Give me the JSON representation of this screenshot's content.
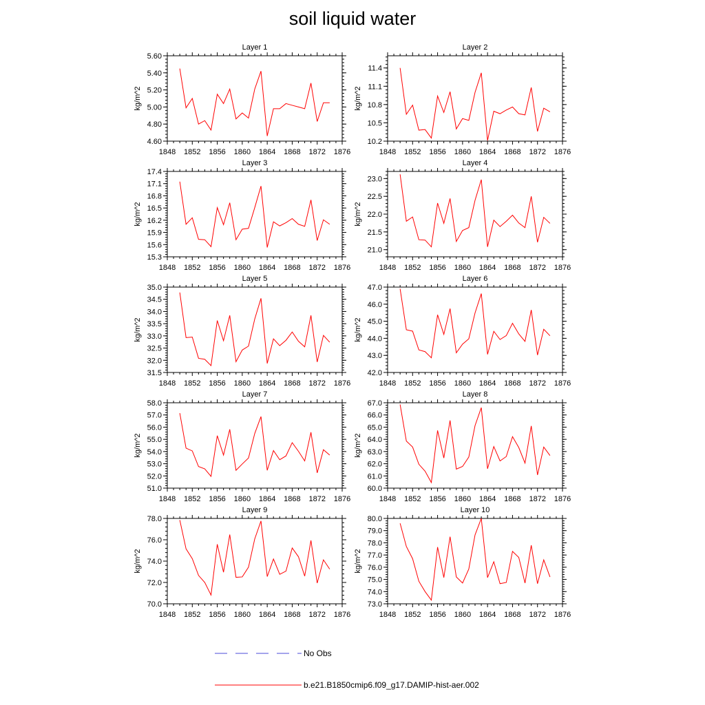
{
  "figure": {
    "title": "soil liquid water"
  },
  "legend": {
    "entries": [
      {
        "label": "No Obs",
        "color": "#4a4ad8",
        "style": "dashed"
      },
      {
        "label": "b.e21.B1850cmip6.f09_g17.DAMIP-hist-aer.002",
        "color": "#ff0000",
        "style": "solid"
      }
    ]
  },
  "chart_data": [
    {
      "type": "line",
      "title": "Layer 1",
      "ylabel": "kg/m^2",
      "xlim": [
        1848,
        1876
      ],
      "xticks": [
        1848,
        1852,
        1856,
        1860,
        1864,
        1868,
        1872,
        1876
      ],
      "ylim": [
        4.6,
        5.6
      ],
      "yticks": [
        "4.60",
        "4.80",
        "5.00",
        "5.20",
        "5.40",
        "5.60"
      ],
      "x": [
        1850,
        1851,
        1852,
        1853,
        1854,
        1855,
        1856,
        1857,
        1858,
        1859,
        1860,
        1861,
        1862,
        1863,
        1864,
        1865,
        1866,
        1867,
        1868,
        1869,
        1870,
        1871,
        1872,
        1873,
        1874
      ],
      "series": [
        {
          "name": "b.e21.B1850cmip6.f09_g17.DAMIP-hist-aer.002",
          "color": "#ff0000",
          "values": [
            5.45,
            4.99,
            5.1,
            4.8,
            4.84,
            4.73,
            5.15,
            5.04,
            5.21,
            4.86,
            4.93,
            4.87,
            5.21,
            5.42,
            4.66,
            4.98,
            4.98,
            5.04,
            5.02,
            5.0,
            4.98,
            5.28,
            4.83,
            5.05,
            5.05
          ]
        }
      ]
    },
    {
      "type": "line",
      "title": "Layer 2",
      "ylabel": "kg/m^2",
      "xlim": [
        1848,
        1876
      ],
      "xticks": [
        1848,
        1852,
        1856,
        1860,
        1864,
        1868,
        1872,
        1876
      ],
      "ylim": [
        10.2,
        11.6
      ],
      "yticks": [
        "10.2",
        "10.5",
        "10.8",
        "11.1",
        "11.4"
      ],
      "x": [
        1850,
        1851,
        1852,
        1853,
        1854,
        1855,
        1856,
        1857,
        1858,
        1859,
        1860,
        1861,
        1862,
        1863,
        1864,
        1865,
        1866,
        1867,
        1868,
        1869,
        1870,
        1871,
        1872,
        1873,
        1874
      ],
      "series": [
        {
          "name": "b.e21.B1850cmip6.f09_g17.DAMIP-hist-aer.002",
          "color": "#ff0000",
          "values": [
            11.4,
            10.64,
            10.79,
            10.38,
            10.39,
            10.25,
            10.94,
            10.67,
            11.01,
            10.4,
            10.57,
            10.54,
            11.0,
            11.32,
            10.21,
            10.69,
            10.65,
            10.71,
            10.76,
            10.65,
            10.63,
            11.08,
            10.36,
            10.74,
            10.68
          ]
        }
      ]
    },
    {
      "type": "line",
      "title": "Layer 3",
      "ylabel": "kg/m^2",
      "xlim": [
        1848,
        1876
      ],
      "xticks": [
        1848,
        1852,
        1856,
        1860,
        1864,
        1868,
        1872,
        1876
      ],
      "ylim": [
        15.3,
        17.4
      ],
      "yticks": [
        "15.3",
        "15.6",
        "15.9",
        "16.2",
        "16.5",
        "16.8",
        "17.1",
        "17.4"
      ],
      "x": [
        1850,
        1851,
        1852,
        1853,
        1854,
        1855,
        1856,
        1857,
        1858,
        1859,
        1860,
        1861,
        1862,
        1863,
        1864,
        1865,
        1866,
        1867,
        1868,
        1869,
        1870,
        1871,
        1872,
        1873,
        1874
      ],
      "series": [
        {
          "name": "b.e21.B1850cmip6.f09_g17.DAMIP-hist-aer.002",
          "color": "#ff0000",
          "values": [
            17.15,
            16.1,
            16.26,
            15.73,
            15.72,
            15.55,
            16.51,
            16.09,
            16.63,
            15.72,
            15.98,
            16.0,
            16.51,
            17.04,
            15.53,
            16.16,
            16.06,
            16.14,
            16.24,
            16.1,
            16.05,
            16.7,
            15.7,
            16.21,
            16.1
          ]
        }
      ]
    },
    {
      "type": "line",
      "title": "Layer 4",
      "ylabel": "kg/m^2",
      "xlim": [
        1848,
        1876
      ],
      "xticks": [
        1848,
        1852,
        1856,
        1860,
        1864,
        1868,
        1872,
        1876
      ],
      "ylim": [
        20.8,
        23.2
      ],
      "yticks": [
        "21.0",
        "21.5",
        "22.0",
        "22.5",
        "23.0"
      ],
      "x": [
        1850,
        1851,
        1852,
        1853,
        1854,
        1855,
        1856,
        1857,
        1858,
        1859,
        1860,
        1861,
        1862,
        1863,
        1864,
        1865,
        1866,
        1867,
        1868,
        1869,
        1870,
        1871,
        1872,
        1873,
        1874
      ],
      "series": [
        {
          "name": "b.e21.B1850cmip6.f09_g17.DAMIP-hist-aer.002",
          "color": "#ff0000",
          "values": [
            23.12,
            21.8,
            21.92,
            21.28,
            21.27,
            21.08,
            22.31,
            21.74,
            22.44,
            21.23,
            21.54,
            21.62,
            22.39,
            22.97,
            21.08,
            21.83,
            21.65,
            21.8,
            21.97,
            21.75,
            21.62,
            22.5,
            21.21,
            21.91,
            21.74
          ]
        }
      ]
    },
    {
      "type": "line",
      "title": "Layer 5",
      "ylabel": "kg/m^2",
      "xlim": [
        1848,
        1876
      ],
      "xticks": [
        1848,
        1852,
        1856,
        1860,
        1864,
        1868,
        1872,
        1876
      ],
      "ylim": [
        31.5,
        35.0
      ],
      "yticks": [
        "31.5",
        "32.0",
        "32.5",
        "33.0",
        "33.5",
        "34.0",
        "34.5",
        "35.0"
      ],
      "x": [
        1850,
        1851,
        1852,
        1853,
        1854,
        1855,
        1856,
        1857,
        1858,
        1859,
        1860,
        1861,
        1862,
        1863,
        1864,
        1865,
        1866,
        1867,
        1868,
        1869,
        1870,
        1871,
        1872,
        1873,
        1874
      ],
      "series": [
        {
          "name": "b.e21.B1850cmip6.f09_g17.DAMIP-hist-aer.002",
          "color": "#ff0000",
          "values": [
            34.78,
            32.93,
            32.95,
            32.08,
            32.04,
            31.78,
            33.63,
            32.8,
            33.84,
            31.94,
            32.42,
            32.58,
            33.69,
            34.54,
            31.87,
            32.88,
            32.6,
            32.82,
            33.16,
            32.78,
            32.55,
            33.84,
            31.93,
            33.02,
            32.74
          ]
        }
      ]
    },
    {
      "type": "line",
      "title": "Layer 6",
      "ylabel": "kg/m^2",
      "xlim": [
        1848,
        1876
      ],
      "xticks": [
        1848,
        1852,
        1856,
        1860,
        1864,
        1868,
        1872,
        1876
      ],
      "ylim": [
        42.0,
        47.0
      ],
      "yticks": [
        "42.0",
        "43.0",
        "44.0",
        "45.0",
        "46.0",
        "47.0"
      ],
      "x": [
        1850,
        1851,
        1852,
        1853,
        1854,
        1855,
        1856,
        1857,
        1858,
        1859,
        1860,
        1861,
        1862,
        1863,
        1864,
        1865,
        1866,
        1867,
        1868,
        1869,
        1870,
        1871,
        1872,
        1873,
        1874
      ],
      "series": [
        {
          "name": "b.e21.B1850cmip6.f09_g17.DAMIP-hist-aer.002",
          "color": "#ff0000",
          "values": [
            46.9,
            44.5,
            44.42,
            43.32,
            43.22,
            42.86,
            45.38,
            44.23,
            45.74,
            43.15,
            43.66,
            43.97,
            45.49,
            46.62,
            43.06,
            44.41,
            43.93,
            44.16,
            44.88,
            44.26,
            43.82,
            45.66,
            43.02,
            44.53,
            44.15
          ]
        }
      ]
    },
    {
      "type": "line",
      "title": "Layer 7",
      "ylabel": "kg/m^2",
      "xlim": [
        1848,
        1876
      ],
      "xticks": [
        1848,
        1852,
        1856,
        1860,
        1864,
        1868,
        1872,
        1876
      ],
      "ylim": [
        51.0,
        58.0
      ],
      "yticks": [
        "51.0",
        "52.0",
        "53.0",
        "54.0",
        "55.0",
        "56.0",
        "57.0",
        "58.0"
      ],
      "x": [
        1850,
        1851,
        1852,
        1853,
        1854,
        1855,
        1856,
        1857,
        1858,
        1859,
        1860,
        1861,
        1862,
        1863,
        1864,
        1865,
        1866,
        1867,
        1868,
        1869,
        1870,
        1871,
        1872,
        1873,
        1874
      ],
      "series": [
        {
          "name": "b.e21.B1850cmip6.f09_g17.DAMIP-hist-aer.002",
          "color": "#ff0000",
          "values": [
            57.15,
            54.28,
            54.05,
            52.77,
            52.58,
            51.96,
            55.3,
            53.71,
            55.82,
            52.46,
            52.98,
            53.47,
            55.48,
            56.87,
            52.46,
            54.08,
            53.33,
            53.64,
            54.73,
            54.02,
            53.23,
            55.58,
            52.25,
            54.15,
            53.71
          ]
        }
      ]
    },
    {
      "type": "line",
      "title": "Layer 8",
      "ylabel": "kg/m^2",
      "xlim": [
        1848,
        1876
      ],
      "xticks": [
        1848,
        1852,
        1856,
        1860,
        1864,
        1868,
        1872,
        1876
      ],
      "ylim": [
        60.0,
        67.0
      ],
      "yticks": [
        "60.0",
        "61.0",
        "62.0",
        "63.0",
        "64.0",
        "65.0",
        "66.0",
        "67.0"
      ],
      "x": [
        1850,
        1851,
        1852,
        1853,
        1854,
        1855,
        1856,
        1857,
        1858,
        1859,
        1860,
        1861,
        1862,
        1863,
        1864,
        1865,
        1866,
        1867,
        1868,
        1869,
        1870,
        1871,
        1872,
        1873,
        1874
      ],
      "series": [
        {
          "name": "b.e21.B1850cmip6.f09_g17.DAMIP-hist-aer.002",
          "color": "#ff0000",
          "values": [
            66.86,
            63.86,
            63.37,
            61.96,
            61.39,
            60.46,
            64.73,
            62.47,
            65.55,
            61.56,
            61.78,
            62.55,
            65.13,
            66.6,
            61.59,
            63.41,
            62.23,
            62.59,
            64.22,
            63.33,
            62.05,
            65.1,
            61.08,
            63.37,
            62.67
          ]
        }
      ]
    },
    {
      "type": "line",
      "title": "Layer 9",
      "ylabel": "kg/m^2",
      "xlim": [
        1848,
        1876
      ],
      "xticks": [
        1848,
        1852,
        1856,
        1860,
        1864,
        1868,
        1872,
        1876
      ],
      "ylim": [
        70.0,
        78.0
      ],
      "yticks": [
        "70.0",
        "72.0",
        "74.0",
        "76.0",
        "78.0"
      ],
      "x": [
        1850,
        1851,
        1852,
        1853,
        1854,
        1855,
        1856,
        1857,
        1858,
        1859,
        1860,
        1861,
        1862,
        1863,
        1864,
        1865,
        1866,
        1867,
        1868,
        1869,
        1870,
        1871,
        1872,
        1873,
        1874
      ],
      "series": [
        {
          "name": "b.e21.B1850cmip6.f09_g17.DAMIP-hist-aer.002",
          "color": "#ff0000",
          "values": [
            77.85,
            75.15,
            74.23,
            72.66,
            72.0,
            70.82,
            75.58,
            72.96,
            76.49,
            72.48,
            72.52,
            73.43,
            76.08,
            77.76,
            72.55,
            74.2,
            72.76,
            73.06,
            75.23,
            74.41,
            72.59,
            75.94,
            71.94,
            74.12,
            73.25
          ]
        }
      ]
    },
    {
      "type": "line",
      "title": "Layer 10",
      "ylabel": "kg/m^2",
      "xlim": [
        1848,
        1876
      ],
      "xticks": [
        1848,
        1852,
        1856,
        1860,
        1864,
        1868,
        1872,
        1876
      ],
      "ylim": [
        73.0,
        80.0
      ],
      "yticks": [
        "73.0",
        "74.0",
        "75.0",
        "76.0",
        "77.0",
        "78.0",
        "79.0",
        "80.0"
      ],
      "x": [
        1850,
        1851,
        1852,
        1853,
        1854,
        1855,
        1856,
        1857,
        1858,
        1859,
        1860,
        1861,
        1862,
        1863,
        1864,
        1865,
        1866,
        1867,
        1868,
        1869,
        1870,
        1871,
        1872,
        1873,
        1874
      ],
      "series": [
        {
          "name": "b.e21.B1850cmip6.f09_g17.DAMIP-hist-aer.002",
          "color": "#ff0000",
          "values": [
            79.6,
            77.7,
            76.7,
            74.85,
            74.0,
            73.3,
            77.65,
            75.15,
            78.5,
            75.2,
            74.7,
            75.85,
            78.65,
            80.0,
            75.15,
            76.45,
            74.65,
            74.75,
            77.3,
            76.8,
            74.7,
            77.8,
            74.65,
            76.6,
            75.2
          ]
        }
      ]
    }
  ]
}
